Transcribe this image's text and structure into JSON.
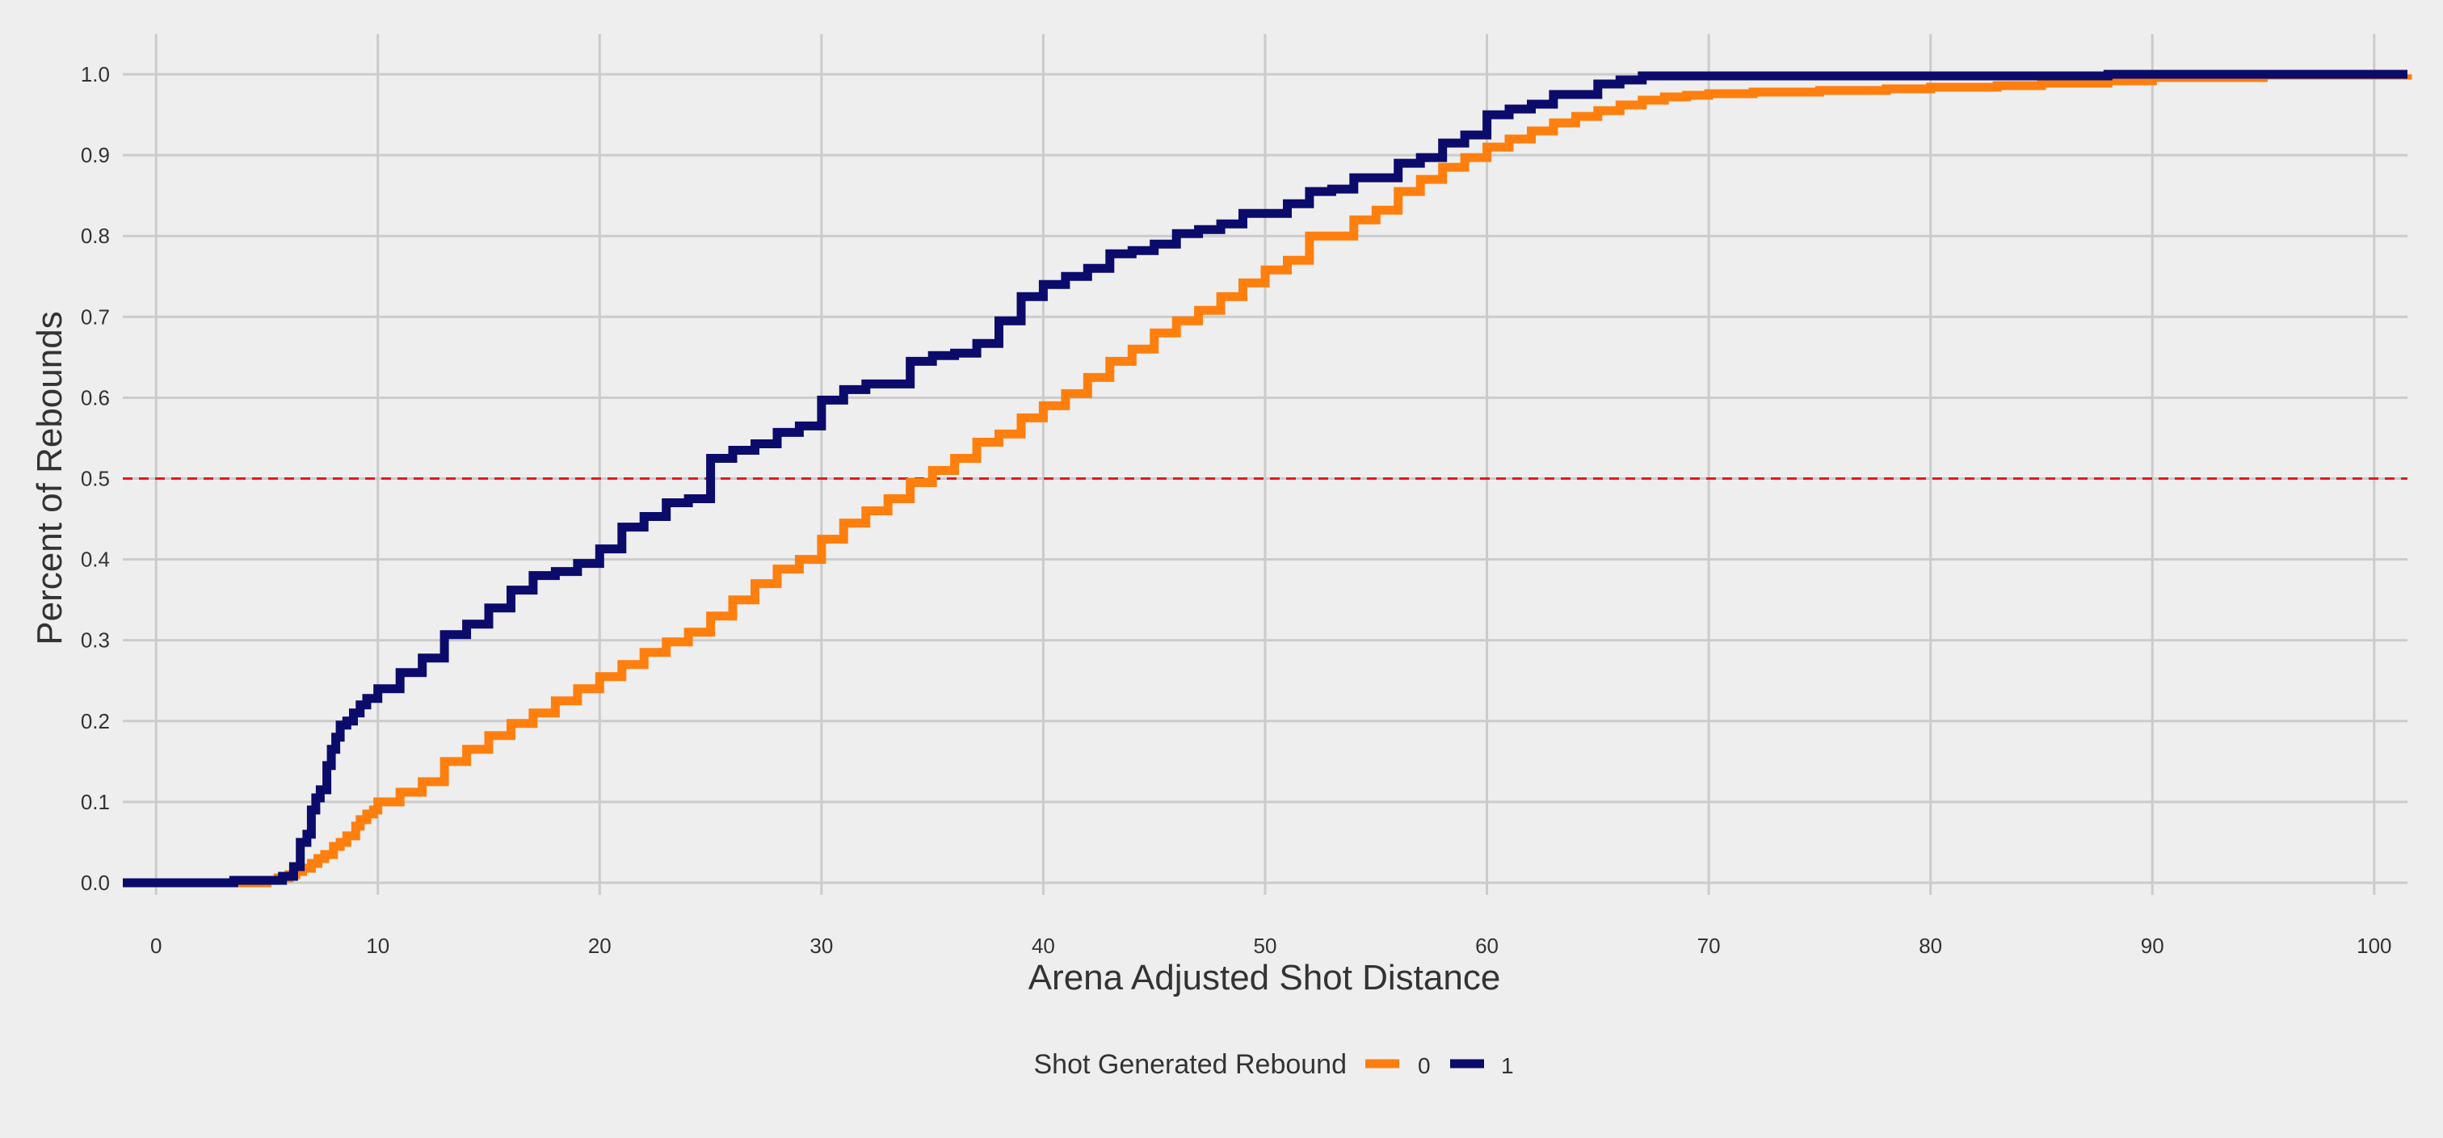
{
  "chart_data": {
    "type": "line",
    "step": true,
    "title": "",
    "xlabel": "Arena Adjusted Shot Distance",
    "ylabel": "Percent of Rebounds",
    "xlim": [
      -1.5,
      101.5
    ],
    "ylim": [
      -0.01,
      1.0
    ],
    "x_ticks": [
      0,
      10,
      20,
      30,
      40,
      50,
      60,
      70,
      80,
      90,
      100
    ],
    "y_ticks": [
      0.0,
      0.1,
      0.2,
      0.3,
      0.4,
      0.5,
      0.6,
      0.7,
      0.8,
      0.9,
      1.0
    ],
    "x_tick_labels": [
      "0",
      "10",
      "20",
      "30",
      "40",
      "50",
      "60",
      "70",
      "80",
      "90",
      "100"
    ],
    "y_tick_labels": [
      "0.0",
      "0.1",
      "0.2",
      "0.3",
      "0.4",
      "0.5",
      "0.6",
      "0.7",
      "0.8",
      "0.9",
      "1.0"
    ],
    "grid": true,
    "reference_line": {
      "y": 0.5,
      "style": "dashed",
      "color": "#E41A1C"
    },
    "legend": {
      "title": "Shot Generated Rebound",
      "placement": "bottom-center",
      "entries": [
        "0",
        "1"
      ]
    },
    "series": [
      {
        "name": "0",
        "color": "#FF7F0E",
        "x": [
          -1.5,
          4.0,
          5.0,
          5.5,
          6.0,
          6.3,
          6.6,
          7.0,
          7.3,
          7.6,
          8.0,
          8.3,
          8.6,
          9.0,
          9.2,
          9.5,
          9.8,
          10.0,
          11.0,
          12.0,
          13.0,
          14.0,
          15.0,
          16.0,
          17.0,
          18.0,
          19.0,
          20.0,
          21.0,
          22.0,
          23.0,
          24.0,
          25.0,
          26.0,
          27.0,
          28.0,
          29.0,
          30.0,
          31.0,
          32.0,
          33.0,
          34.0,
          35.0,
          36.0,
          37.0,
          38.0,
          39.0,
          40.0,
          41.0,
          42.0,
          43.0,
          44.0,
          45.0,
          46.0,
          47.0,
          48.0,
          49.0,
          50.0,
          51.0,
          52.0,
          53.0,
          54.0,
          55.0,
          56.0,
          57.0,
          58.0,
          59.0,
          60.0,
          61.0,
          62.0,
          63.0,
          64.0,
          65.0,
          66.0,
          67.0,
          68.0,
          69.0,
          70.0,
          72.0,
          75.0,
          78.0,
          80.0,
          83.0,
          85.0,
          88.0,
          90.0,
          95.0,
          101.5
        ],
        "y": [
          0.0,
          0.0,
          0.003,
          0.006,
          0.01,
          0.014,
          0.018,
          0.024,
          0.03,
          0.035,
          0.045,
          0.05,
          0.058,
          0.07,
          0.078,
          0.085,
          0.09,
          0.1,
          0.112,
          0.125,
          0.15,
          0.165,
          0.182,
          0.197,
          0.21,
          0.225,
          0.24,
          0.255,
          0.27,
          0.285,
          0.298,
          0.31,
          0.33,
          0.35,
          0.37,
          0.388,
          0.4,
          0.425,
          0.445,
          0.46,
          0.475,
          0.495,
          0.51,
          0.525,
          0.545,
          0.555,
          0.575,
          0.59,
          0.605,
          0.625,
          0.645,
          0.66,
          0.68,
          0.695,
          0.708,
          0.725,
          0.742,
          0.758,
          0.77,
          0.8,
          0.8,
          0.82,
          0.832,
          0.855,
          0.87,
          0.885,
          0.897,
          0.91,
          0.92,
          0.93,
          0.94,
          0.948,
          0.955,
          0.962,
          0.968,
          0.972,
          0.974,
          0.976,
          0.978,
          0.98,
          0.982,
          0.984,
          0.986,
          0.989,
          0.992,
          0.996,
          0.999,
          1.0
        ]
      },
      {
        "name": "1",
        "color": "#0B0B6B",
        "x": [
          -1.5,
          3.5,
          5.7,
          6.2,
          6.5,
          6.8,
          7.0,
          7.2,
          7.4,
          7.7,
          7.9,
          8.1,
          8.3,
          8.6,
          8.9,
          9.2,
          9.5,
          10.0,
          11.0,
          12.0,
          13.0,
          14.0,
          15.0,
          16.0,
          17.0,
          18.0,
          19.0,
          20.0,
          21.0,
          22.0,
          23.0,
          24.0,
          25.0,
          26.0,
          27.0,
          28.0,
          29.0,
          30.0,
          31.0,
          32.0,
          33.0,
          34.0,
          35.0,
          36.0,
          37.0,
          38.0,
          39.0,
          40.0,
          41.0,
          42.0,
          43.0,
          44.0,
          45.0,
          46.0,
          47.0,
          48.0,
          49.0,
          50.0,
          51.0,
          52.0,
          53.0,
          54.0,
          55.0,
          56.0,
          57.0,
          58.0,
          59.0,
          60.0,
          61.0,
          62.0,
          63.0,
          64.0,
          65.0,
          66.0,
          67.0,
          70.0,
          75.0,
          80.0,
          85.0,
          88.0,
          90.0,
          95.0,
          101.5
        ],
        "y": [
          0.0,
          0.003,
          0.008,
          0.02,
          0.05,
          0.06,
          0.09,
          0.105,
          0.115,
          0.145,
          0.165,
          0.18,
          0.195,
          0.2,
          0.21,
          0.22,
          0.228,
          0.24,
          0.26,
          0.278,
          0.307,
          0.32,
          0.34,
          0.362,
          0.38,
          0.385,
          0.395,
          0.413,
          0.44,
          0.453,
          0.47,
          0.475,
          0.525,
          0.535,
          0.543,
          0.557,
          0.565,
          0.597,
          0.61,
          0.617,
          0.617,
          0.645,
          0.652,
          0.655,
          0.667,
          0.695,
          0.725,
          0.74,
          0.75,
          0.76,
          0.778,
          0.782,
          0.79,
          0.803,
          0.808,
          0.815,
          0.828,
          0.828,
          0.84,
          0.855,
          0.858,
          0.872,
          0.872,
          0.89,
          0.897,
          0.915,
          0.925,
          0.95,
          0.957,
          0.963,
          0.975,
          0.975,
          0.988,
          0.993,
          0.998,
          0.998,
          0.998,
          0.998,
          0.998,
          1.0,
          1.0,
          1.0,
          1.0
        ]
      }
    ]
  }
}
